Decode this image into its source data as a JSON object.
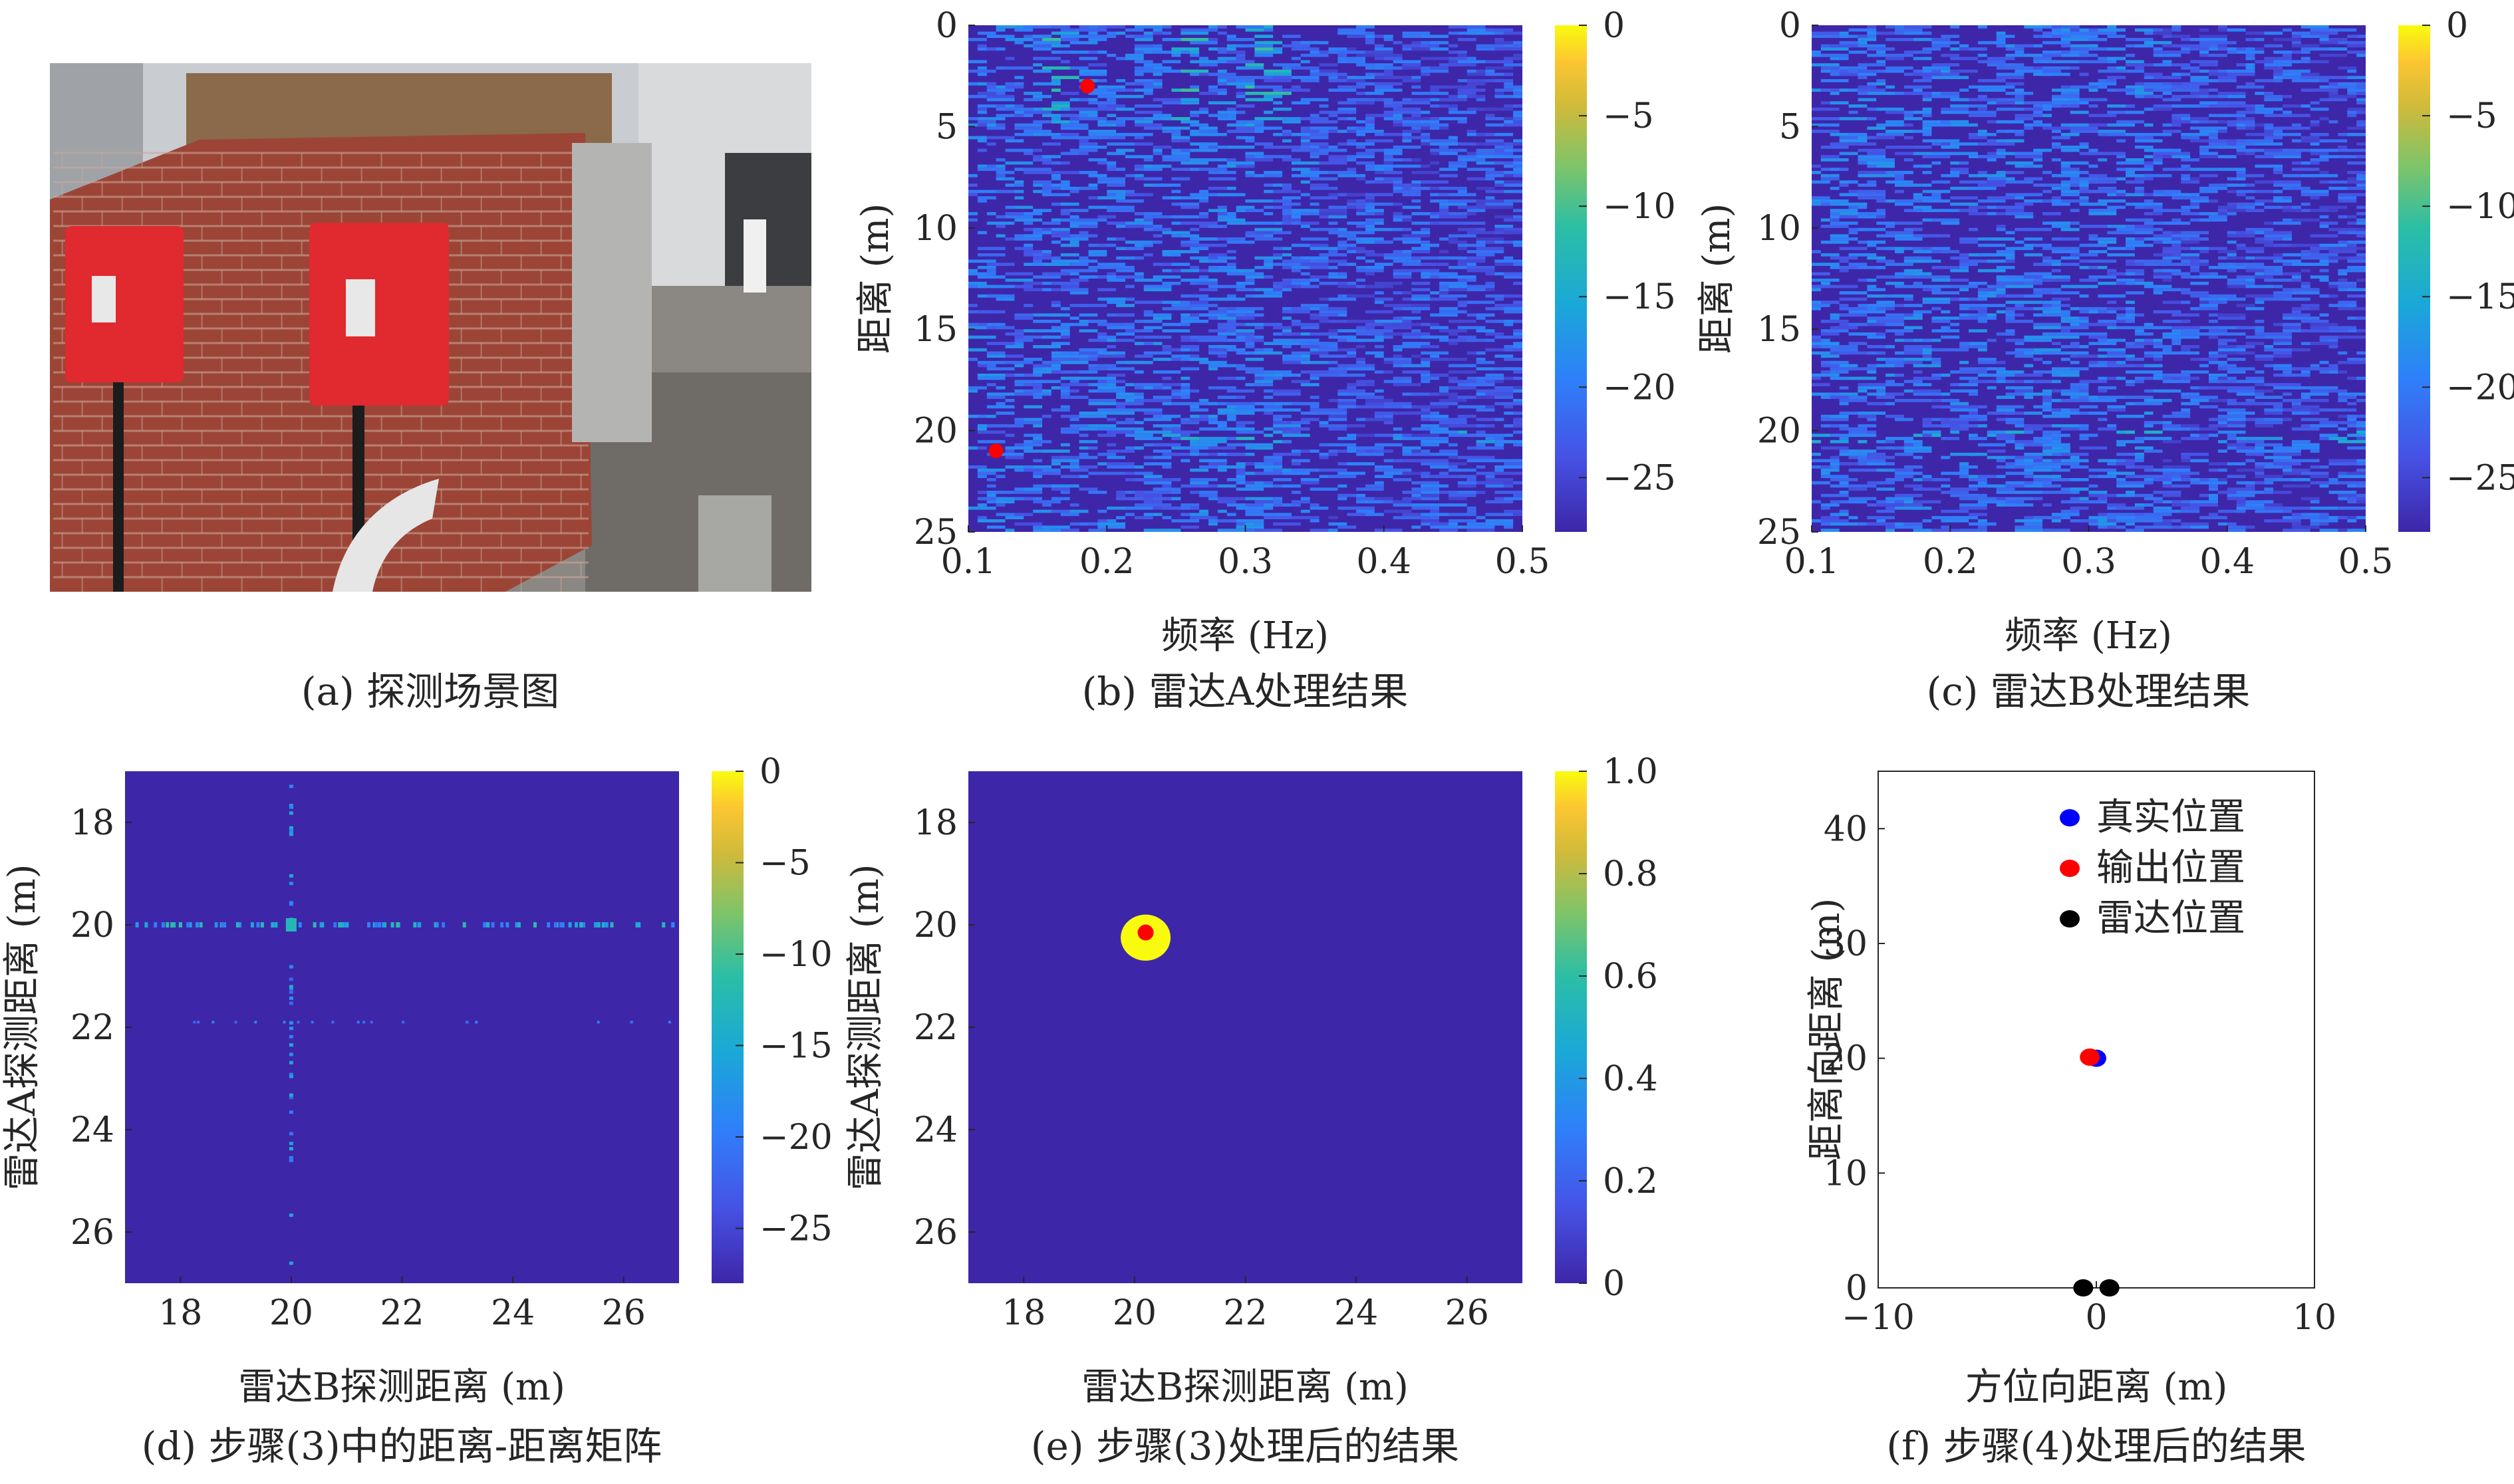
{
  "figure": {
    "captions": {
      "a": "(a) 探测场景图",
      "b": "(b) 雷达A处理结果",
      "c": "(c) 雷达B处理结果",
      "d": "(d) 步骤(3)中的距离-距离矩阵",
      "e": "(e) 步骤(3)处理后的结果",
      "f": "(f) 步骤(4)处理后的结果"
    }
  },
  "colors": {
    "background_blue": "#3e26a8",
    "colormap_top": "#f9fb0e",
    "marker_red": "#ff0000",
    "marker_blue": "#0000ff",
    "marker_black": "#000000"
  },
  "photo": {
    "description_words": [
      "brick-wall",
      "red-radar-boxes",
      "building"
    ]
  },
  "chart_data": [
    {
      "id": "b",
      "type": "heatmap",
      "xlabel": "频率 (Hz)",
      "ylabel": "距离 (m)",
      "xlim": [
        0.1,
        0.5
      ],
      "ylim": [
        0,
        25
      ],
      "y_reversed": true,
      "xticks": [
        "0.1",
        "0.2",
        "0.3",
        "0.4",
        "0.5"
      ],
      "yticks": [
        "0",
        "5",
        "10",
        "15",
        "20",
        "25"
      ],
      "colorbar": {
        "range": [
          -28,
          0
        ],
        "ticks": [
          "0",
          "−5",
          "−10",
          "−15",
          "−20",
          "−25"
        ]
      },
      "markers": [
        {
          "x": 0.186,
          "y": 3.0,
          "color": "red"
        },
        {
          "x": 0.12,
          "y": 21.0,
          "color": "red"
        }
      ],
      "bright_bands_x": [
        0.16,
        0.255,
        0.31
      ]
    },
    {
      "id": "c",
      "type": "heatmap",
      "xlabel": "频率 (Hz)",
      "ylabel": "距离 (m)",
      "xlim": [
        0.1,
        0.5
      ],
      "ylim": [
        0,
        25
      ],
      "y_reversed": true,
      "xticks": [
        "0.1",
        "0.2",
        "0.3",
        "0.4",
        "0.5"
      ],
      "yticks": [
        "0",
        "5",
        "10",
        "15",
        "20",
        "25"
      ],
      "colorbar": {
        "range": [
          -28,
          0
        ],
        "ticks": [
          "0",
          "−5",
          "−10",
          "−15",
          "−20",
          "−25"
        ]
      }
    },
    {
      "id": "d",
      "type": "heatmap",
      "xlabel": "雷达B探测距离 (m)",
      "ylabel": "雷达A探测距离 (m)",
      "xlim": [
        17,
        27
      ],
      "ylim": [
        17,
        27
      ],
      "y_reversed": true,
      "xticks": [
        "18",
        "20",
        "22",
        "24",
        "26"
      ],
      "yticks": [
        "18",
        "20",
        "22",
        "24",
        "26"
      ],
      "colorbar": {
        "range": [
          -28,
          0
        ],
        "ticks": [
          "0",
          "−5",
          "−10",
          "−15",
          "−20",
          "−25"
        ]
      },
      "bright_row_y": 20.0,
      "bright_col_x": 20.0
    },
    {
      "id": "e",
      "type": "heatmap",
      "xlabel": "雷达B探测距离 (m)",
      "ylabel": "雷达A探测距离 (m)",
      "xlim": [
        17,
        27
      ],
      "ylim": [
        17,
        27
      ],
      "y_reversed": true,
      "xticks": [
        "18",
        "20",
        "22",
        "24",
        "26"
      ],
      "yticks": [
        "18",
        "20",
        "22",
        "24",
        "26"
      ],
      "colorbar": {
        "range": [
          0,
          1
        ],
        "ticks": [
          "1.0",
          "0.8",
          "0.6",
          "0.4",
          "0.2",
          "0"
        ]
      },
      "blob": {
        "x": 20.2,
        "y": 20.25,
        "radius": 0.45,
        "value": 1.0
      },
      "markers": [
        {
          "x": 20.2,
          "y": 20.15,
          "color": "red"
        }
      ]
    },
    {
      "id": "f",
      "type": "scatter",
      "xlabel": "方位向距离 (m)",
      "ylabel": "距离向距离 (m)",
      "xlim": [
        -10,
        10
      ],
      "ylim": [
        0,
        45
      ],
      "xticks": [
        "−10",
        "0",
        "10"
      ],
      "yticks": [
        "0",
        "10",
        "20",
        "30",
        "40"
      ],
      "legend_position": "top",
      "series": [
        {
          "name": "真实位置",
          "color": "blue",
          "points": [
            [
              0.0,
              20.0
            ]
          ]
        },
        {
          "name": "输出位置",
          "color": "red",
          "points": [
            [
              -0.3,
              20.1
            ]
          ]
        },
        {
          "name": "雷达位置",
          "color": "black",
          "points": [
            [
              -0.6,
              0.0
            ],
            [
              0.6,
              0.0
            ]
          ]
        }
      ]
    }
  ]
}
